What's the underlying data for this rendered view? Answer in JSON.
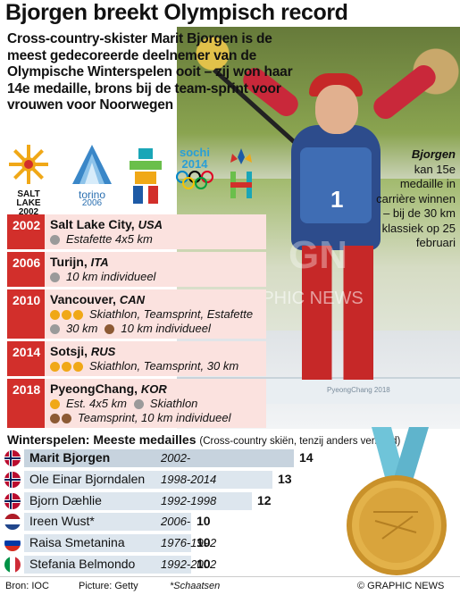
{
  "title": "Bjorgen breekt Olympisch record",
  "intro": "Cross-country-skister Marit Bjorgen is de meest gedecoreerde deelnemer van de Olympische Winterspelen ooit – zij won haar 14e medaille, brons bij de team-sprint voor vrouwen voor Noorwegen",
  "caption": {
    "name": "Bjorgen",
    "text": "kan 15e medaille in carrière winnen – bij de 30 km klassiek op 25 februari"
  },
  "photo": {
    "bib_number": "1",
    "bib_text": "PyeongChang 2018",
    "banner_text": "PyeongChang 2018",
    "watermark": "GRAPHIC NEWS",
    "watermark_logo": "GN"
  },
  "logos": [
    {
      "name": "SALT LAKE",
      "sub": "2002"
    },
    {
      "name": "torino",
      "sub": "2006"
    },
    {
      "name": "",
      "sub": ""
    },
    {
      "name": "sochi",
      "sub": "2014"
    },
    {
      "name": "",
      "sub": ""
    }
  ],
  "games": [
    {
      "year": "2002",
      "city": "Salt Lake City,",
      "country": "USA",
      "events": [
        {
          "medals": [
            "silver"
          ],
          "text": "Estafette 4x5 km"
        }
      ]
    },
    {
      "year": "2006",
      "city": "Turijn,",
      "country": "ITA",
      "events": [
        {
          "medals": [
            "silver"
          ],
          "text": "10 km individueel"
        }
      ]
    },
    {
      "year": "2010",
      "city": "Vancouver,",
      "country": "CAN",
      "events": [
        {
          "medals": [
            "gold",
            "gold",
            "gold"
          ],
          "text": "Skiathlon, Teamsprint, Estafette"
        },
        {
          "medals": [
            "silver"
          ],
          "text": "30 km",
          "extra_medals": [
            "bronze"
          ],
          "extra_text": "10 km individueel"
        }
      ]
    },
    {
      "year": "2014",
      "city": "Sotsji,",
      "country": "RUS",
      "events": [
        {
          "medals": [
            "gold",
            "gold",
            "gold"
          ],
          "text": "Skiathlon, Teamsprint, 30 km"
        }
      ]
    },
    {
      "year": "2018",
      "city": "PyeongChang,",
      "country": "KOR",
      "events": [
        {
          "medals": [
            "gold"
          ],
          "text": "Est. 4x5 km",
          "extra_medals": [
            "silver"
          ],
          "extra_text": "Skiathlon"
        },
        {
          "medals": [
            "bronze",
            "bronze"
          ],
          "text": "Teamsprint, 10 km individueel"
        }
      ]
    }
  ],
  "medals": {
    "heading": "Winterspelen: Meeste medailles",
    "note": "(Cross-country skiën, tenzij anders vermeld)",
    "rows": [
      {
        "name": "Marit Bjorgen",
        "years": "2002-",
        "count": "14",
        "value": 14,
        "flag": "nor",
        "bold": true
      },
      {
        "name": "Ole Einar Bjorndalen",
        "years": "1998-2014",
        "count": "13",
        "value": 13,
        "flag": "nor",
        "bold": false
      },
      {
        "name": "Bjorn Dæhlie",
        "years": "1992-1998",
        "count": "12",
        "value": 12,
        "flag": "nor",
        "bold": false
      },
      {
        "name": "Ireen Wust*",
        "years": "2006-",
        "count": "10",
        "value": 10,
        "flag": "ned",
        "bold": false
      },
      {
        "name": "Raisa Smetanina",
        "years": "1976-1992",
        "count": "10",
        "value": 10,
        "flag": "rus",
        "bold": false
      },
      {
        "name": "Stefania Belmondo",
        "years": "1992-2002",
        "count": "10",
        "value": 10,
        "flag": "ita",
        "bold": false
      }
    ],
    "footnote": "*Schaatsen"
  },
  "footer": {
    "source": "Bron: IOC",
    "picture": "Picture: Getty",
    "copyright": "© GRAPHIC NEWS"
  },
  "colors": {
    "year_red": "#d22f2b",
    "row_pink": "#fbe2df",
    "gold": "#f0a817",
    "silver": "#9a9a9a",
    "bronze": "#8c5a34",
    "bar_blue": "#dde6ee"
  }
}
